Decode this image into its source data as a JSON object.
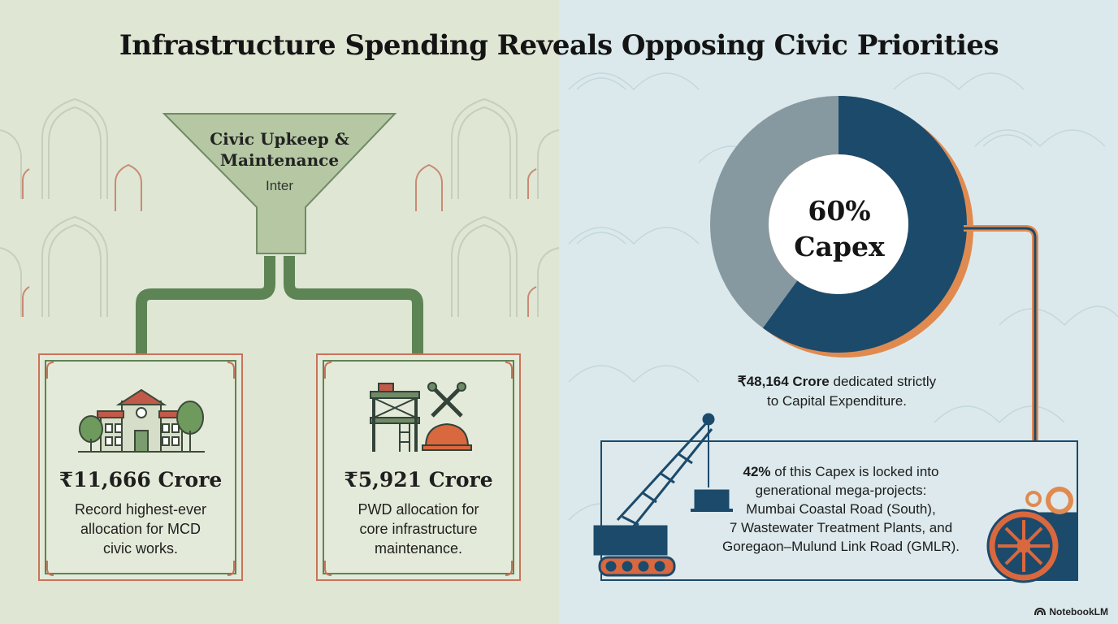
{
  "title": "Infrastructure Spending Reveals Opposing Civic Priorities",
  "funnel": {
    "title_line1": "Civic Upkeep &",
    "title_line2": "Maintenance",
    "subtitle": "Inter"
  },
  "cards": [
    {
      "amount": "₹11,666 Crore",
      "desc_line1": "Record highest-ever",
      "desc_line2": "allocation for MCD",
      "desc_line3": "civic works.",
      "icon": "civic-building-icon"
    },
    {
      "amount": "₹5,921 Crore",
      "desc_line1": "PWD allocation for",
      "desc_line2": "core infrastructure",
      "desc_line3": "maintenance.",
      "icon": "scaffold-tools-icon"
    }
  ],
  "donut": {
    "label_line1": "60%",
    "label_line2": "Capex",
    "capex_percent": 60
  },
  "capex_note": {
    "bold": "₹48,164 Crore",
    "rest": " dedicated strictly",
    "line2": "to Capital Expenditure."
  },
  "megaprojects": {
    "bold": "42%",
    "line1_rest": " of this Capex is locked into",
    "line2": "generational mega-projects:",
    "line3": "Mumbai Coastal Road (South),",
    "line4": "7 Wastewater Treatment Plants, and",
    "line5": "Goregaon–Mulund Link Road (GMLR)."
  },
  "colors": {
    "left_bg": "#dfe6d4",
    "right_bg": "#dbe9ec",
    "pipe_green": "#5d8454",
    "navy": "#1c4a6b",
    "grey": "#8799a0",
    "orange": "#e08a50",
    "terracotta": "#c9735a"
  },
  "brand": "NotebookLM"
}
